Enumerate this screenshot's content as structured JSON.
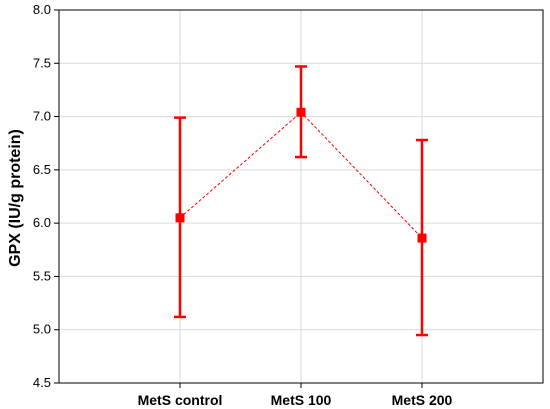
{
  "chart_data": {
    "type": "line",
    "xlabel": "",
    "ylabel": "GPX (IU/g protein)",
    "categories": [
      "MetS control",
      "MetS 100",
      "MetS 200"
    ],
    "ylim": [
      4.5,
      8.0
    ],
    "yticks": [
      "4.5",
      "5.0",
      "5.5",
      "6.0",
      "6.5",
      "7.0",
      "7.5",
      "8.0"
    ],
    "grid": true,
    "series": [
      {
        "values": [
          6.05,
          7.04,
          5.86
        ],
        "error_low": [
          5.12,
          6.62,
          4.95
        ],
        "error_high": [
          6.99,
          7.47,
          6.78
        ],
        "color": "#ff0000",
        "line_style": "dashed",
        "marker": "square"
      }
    ]
  }
}
